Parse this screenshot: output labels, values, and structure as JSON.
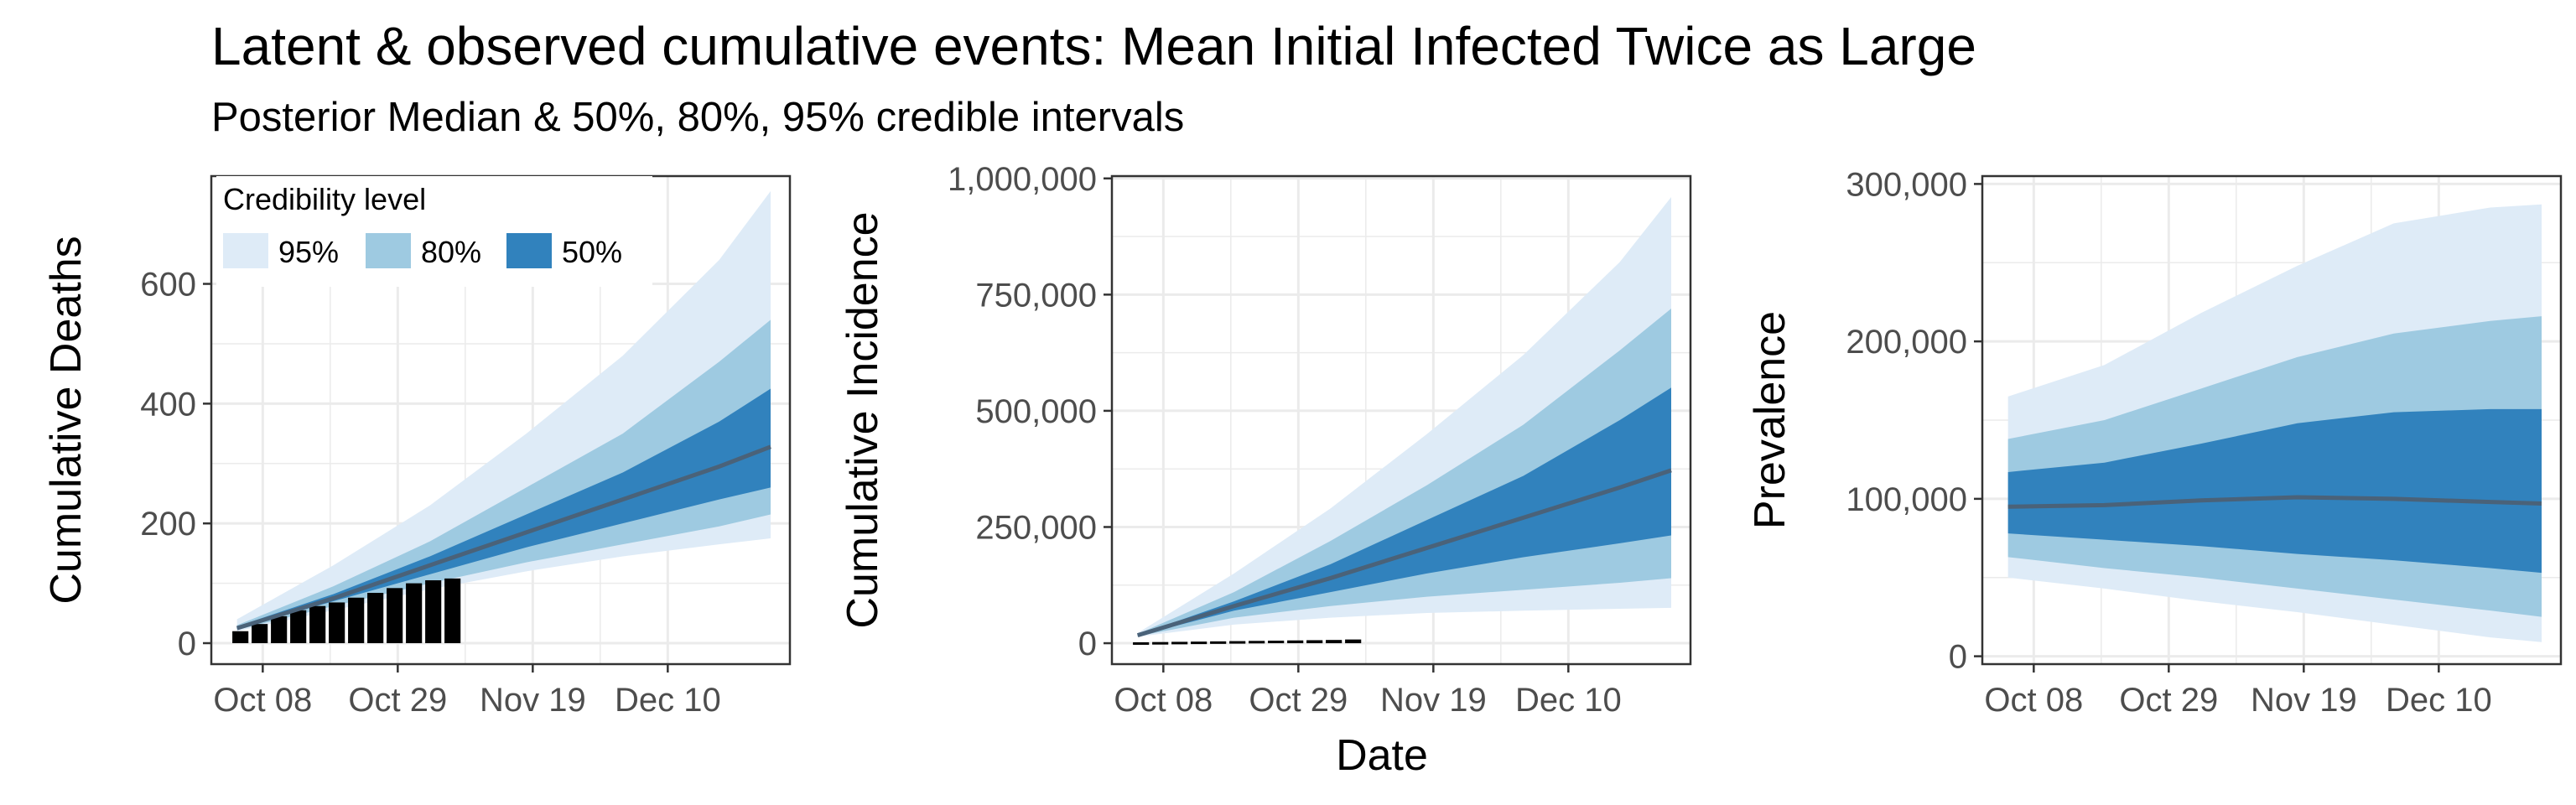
{
  "title": "Latent & observed cumulative events: Mean Initial Infected Twice as Large",
  "subtitle": "Posterior Median & 50%, 80%, 95% credible intervals",
  "xlabel": "Date",
  "legend": {
    "title": "Credibility level",
    "items": [
      {
        "label": "95%",
        "color": "#deebf7"
      },
      {
        "label": "80%",
        "color": "#9ecae1"
      },
      {
        "label": "50%",
        "color": "#3182bd"
      }
    ]
  },
  "colors": {
    "median": "#4a6279",
    "bars": "#000000",
    "grid": "#ebebeb",
    "border": "#333333"
  },
  "chart_data": [
    {
      "type": "area",
      "ylabel": "Cumulative Deaths",
      "xticks": [
        "Oct 08",
        "Oct 29",
        "Nov 19",
        "Dec 10"
      ],
      "yticks": [
        0,
        200,
        400,
        600
      ],
      "yticks_labels": [
        "0",
        "200",
        "400",
        "600"
      ],
      "xlim": [
        "2020-09-30",
        "2020-12-29"
      ],
      "ylim": [
        -35,
        780
      ],
      "legend": "top-left",
      "x": [
        "2020-10-04",
        "2020-10-19",
        "2020-11-03",
        "2020-11-18",
        "2020-12-03",
        "2020-12-18",
        "2020-12-26"
      ],
      "bands": {
        "95%": {
          "lower": [
            20,
            55,
            90,
            120,
            145,
            165,
            175
          ],
          "upper": [
            40,
            130,
            230,
            350,
            480,
            640,
            755
          ]
        },
        "80%": {
          "lower": [
            22,
            62,
            100,
            135,
            165,
            195,
            215
          ],
          "upper": [
            30,
            95,
            170,
            260,
            350,
            470,
            540
          ]
        },
        "50%": {
          "lower": [
            24,
            70,
            115,
            160,
            200,
            240,
            260
          ],
          "upper": [
            28,
            82,
            145,
            215,
            285,
            370,
            425
          ]
        }
      },
      "median": [
        25,
        75,
        130,
        185,
        240,
        295,
        328
      ],
      "bars": {
        "x": [
          "2020-10-04",
          "2020-10-07",
          "2020-10-10",
          "2020-10-13",
          "2020-10-16",
          "2020-10-19",
          "2020-10-22",
          "2020-10-25",
          "2020-10-28",
          "2020-10-31",
          "2020-11-03",
          "2020-11-06"
        ],
        "values": [
          20,
          32,
          45,
          55,
          62,
          68,
          76,
          84,
          92,
          100,
          105,
          108
        ]
      }
    },
    {
      "type": "area",
      "ylabel": "Cumulative Incidence",
      "xticks": [
        "Oct 08",
        "Oct 29",
        "Nov 19",
        "Dec 10"
      ],
      "yticks": [
        0,
        250000,
        500000,
        750000,
        1000000
      ],
      "yticks_labels": [
        "0",
        "250,000",
        "500,000",
        "750,000",
        "1,000,000"
      ],
      "xlim": [
        "2020-09-30",
        "2020-12-29"
      ],
      "ylim": [
        -45000,
        1005000
      ],
      "x": [
        "2020-10-04",
        "2020-10-19",
        "2020-11-03",
        "2020-11-18",
        "2020-12-03",
        "2020-12-18",
        "2020-12-26"
      ],
      "bands": {
        "95%": {
          "lower": [
            14000,
            40000,
            55000,
            65000,
            70000,
            74000,
            76000
          ],
          "upper": [
            22000,
            150000,
            290000,
            450000,
            620000,
            820000,
            960000
          ]
        },
        "80%": {
          "lower": [
            15000,
            55000,
            80000,
            100000,
            115000,
            130000,
            140000
          ],
          "upper": [
            20000,
            110000,
            220000,
            340000,
            470000,
            630000,
            720000
          ]
        },
        "50%": {
          "lower": [
            16000,
            70000,
            110000,
            150000,
            185000,
            215000,
            232000
          ],
          "upper": [
            18000,
            90000,
            170000,
            265000,
            360000,
            480000,
            550000
          ]
        }
      },
      "median": [
        17000,
        80000,
        140000,
        205000,
        270000,
        335000,
        372000
      ],
      "bars": {
        "x": [
          "2020-10-04",
          "2020-10-07",
          "2020-10-10",
          "2020-10-13",
          "2020-10-16",
          "2020-10-19",
          "2020-10-22",
          "2020-10-25",
          "2020-10-28",
          "2020-10-31",
          "2020-11-03",
          "2020-11-06"
        ],
        "values": [
          2000,
          2500,
          3000,
          3500,
          4000,
          4500,
          5000,
          5500,
          6000,
          6500,
          7000,
          8000
        ]
      }
    },
    {
      "type": "area",
      "ylabel": "Prevalence",
      "xticks": [
        "Oct 08",
        "Oct 29",
        "Nov 19",
        "Dec 10"
      ],
      "yticks": [
        0,
        100000,
        200000,
        300000
      ],
      "yticks_labels": [
        "0",
        "100,000",
        "200,000",
        "300,000"
      ],
      "xlim": [
        "2020-09-30",
        "2020-12-29"
      ],
      "ylim": [
        -5000,
        305000
      ],
      "x": [
        "2020-10-04",
        "2020-10-19",
        "2020-11-03",
        "2020-11-18",
        "2020-12-03",
        "2020-12-18",
        "2020-12-26"
      ],
      "bands": {
        "95%": {
          "lower": [
            50000,
            43000,
            35000,
            28000,
            20000,
            12000,
            9000
          ],
          "upper": [
            165000,
            185000,
            218000,
            248000,
            275000,
            285000,
            287000
          ]
        },
        "80%": {
          "lower": [
            63000,
            56000,
            50000,
            43000,
            36000,
            29000,
            25000
          ],
          "upper": [
            138000,
            150000,
            170000,
            190000,
            205000,
            213000,
            216000
          ]
        },
        "50%": {
          "lower": [
            78000,
            74000,
            70000,
            65000,
            61000,
            56000,
            53000
          ],
          "upper": [
            117000,
            123000,
            135000,
            148000,
            155000,
            157000,
            157000
          ]
        }
      },
      "median": [
        95000,
        96000,
        99000,
        101000,
        100000,
        98000,
        97000
      ]
    }
  ]
}
